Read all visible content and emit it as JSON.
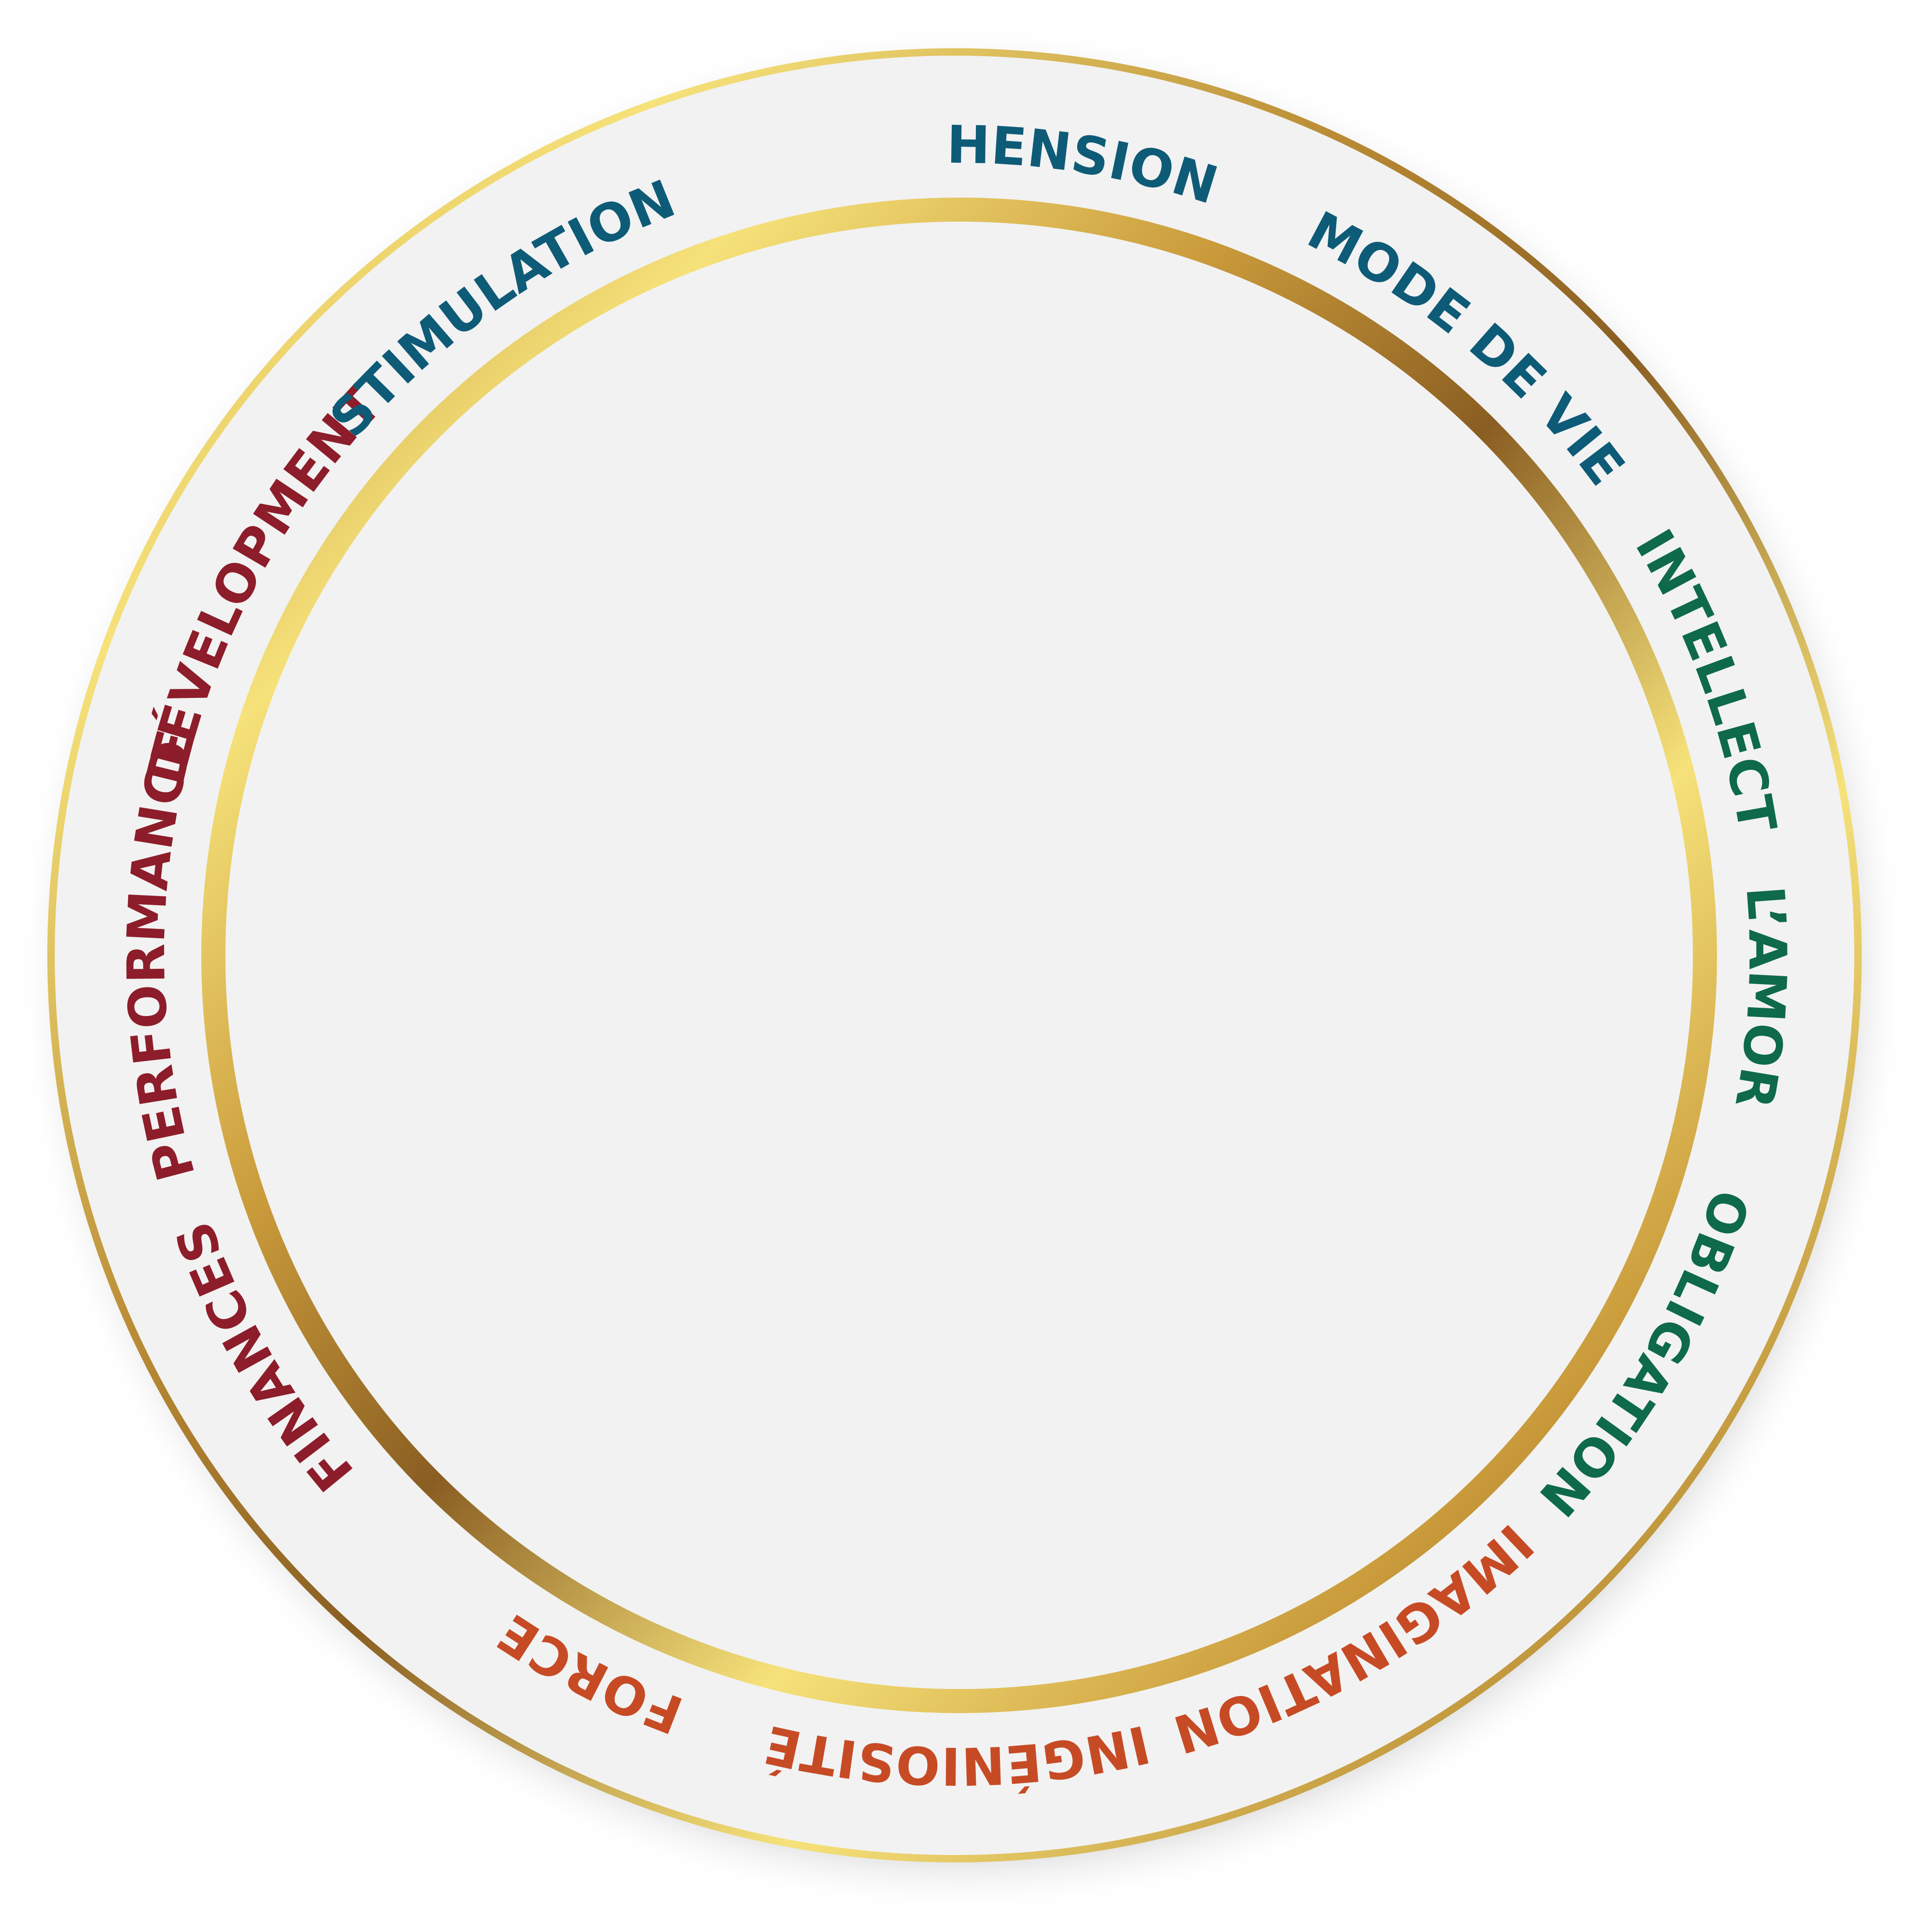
{
  "diagram": {
    "labels": [
      {
        "text": "COMPRÉHENSION",
        "angle": 0,
        "color": "#0e5b78"
      },
      {
        "text": "MODE DE VIE",
        "angle": 40,
        "color": "#0e5b78"
      },
      {
        "text": "INTELLECT",
        "angle": 70,
        "color": "#0e6a4a"
      },
      {
        "text": "L’AMOR",
        "angle": 93,
        "color": "#0e6a4a"
      },
      {
        "text": "OBLIGATION",
        "angle": 120,
        "color": "#0e6a4a"
      },
      {
        "text": "IMAGINATION",
        "angle": 150,
        "color": "#c64b25"
      },
      {
        "text": "INGÉNIOSITÉ",
        "angle": 180,
        "color": "#c64b25"
      },
      {
        "text": "FORCE",
        "angle": 207,
        "color": "#c64b25"
      },
      {
        "text": "FINANCES",
        "angle": 240,
        "color": "#8d1d2a"
      },
      {
        "text": "PERFORMANCE",
        "angle": 270,
        "color": "#8d1d2a"
      },
      {
        "text": "DÉVELOPMENT",
        "angle": 298,
        "color": "#8d1d2a"
      },
      {
        "text": "STIMULATION",
        "angle": 325,
        "color": "#0e5b78"
      }
    ],
    "colors": {
      "plate": "#f2f2f2",
      "gold_light": "#f6e27a",
      "gold_mid": "#c99a3a",
      "gold_dark": "#8a5e22",
      "shadow": "#d9d9d9"
    }
  }
}
